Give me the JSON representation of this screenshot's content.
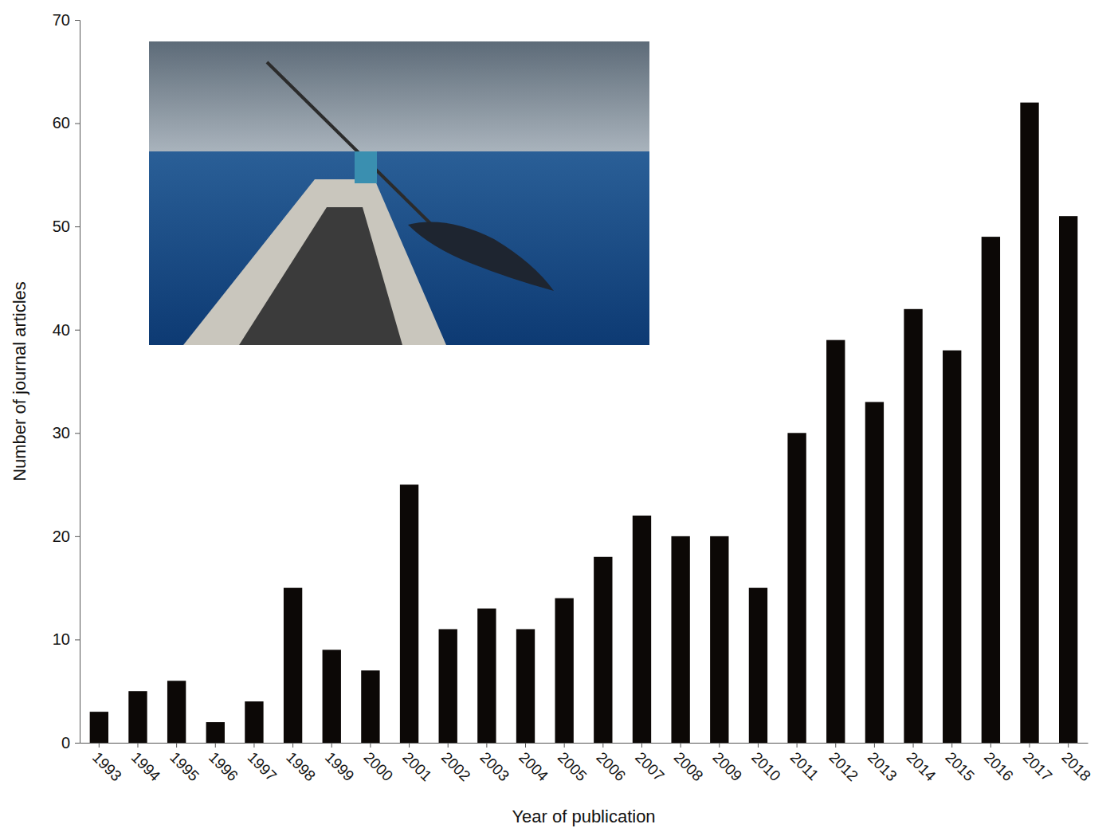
{
  "chart_data": {
    "type": "bar",
    "x_label": "Year of publication",
    "y_label": "Number of journal articles",
    "categories": [
      "1993",
      "1994",
      "1995",
      "1996",
      "1997",
      "1998",
      "1999",
      "2000",
      "2001",
      "2002",
      "2003",
      "2004",
      "2005",
      "2006",
      "2007",
      "2008",
      "2009",
      "2010",
      "2011",
      "2012",
      "2013",
      "2014",
      "2015",
      "2016",
      "2017",
      "2018"
    ],
    "values": [
      3,
      5,
      6,
      2,
      4,
      15,
      9,
      7,
      25,
      11,
      13,
      11,
      14,
      18,
      22,
      20,
      20,
      15,
      30,
      39,
      33,
      42,
      38,
      49,
      62,
      51
    ],
    "color": "#0c0806",
    "ylim": [
      0,
      70
    ],
    "yticks": [
      0,
      10,
      20,
      30,
      40,
      50,
      60,
      70
    ],
    "grid": false
  }
}
